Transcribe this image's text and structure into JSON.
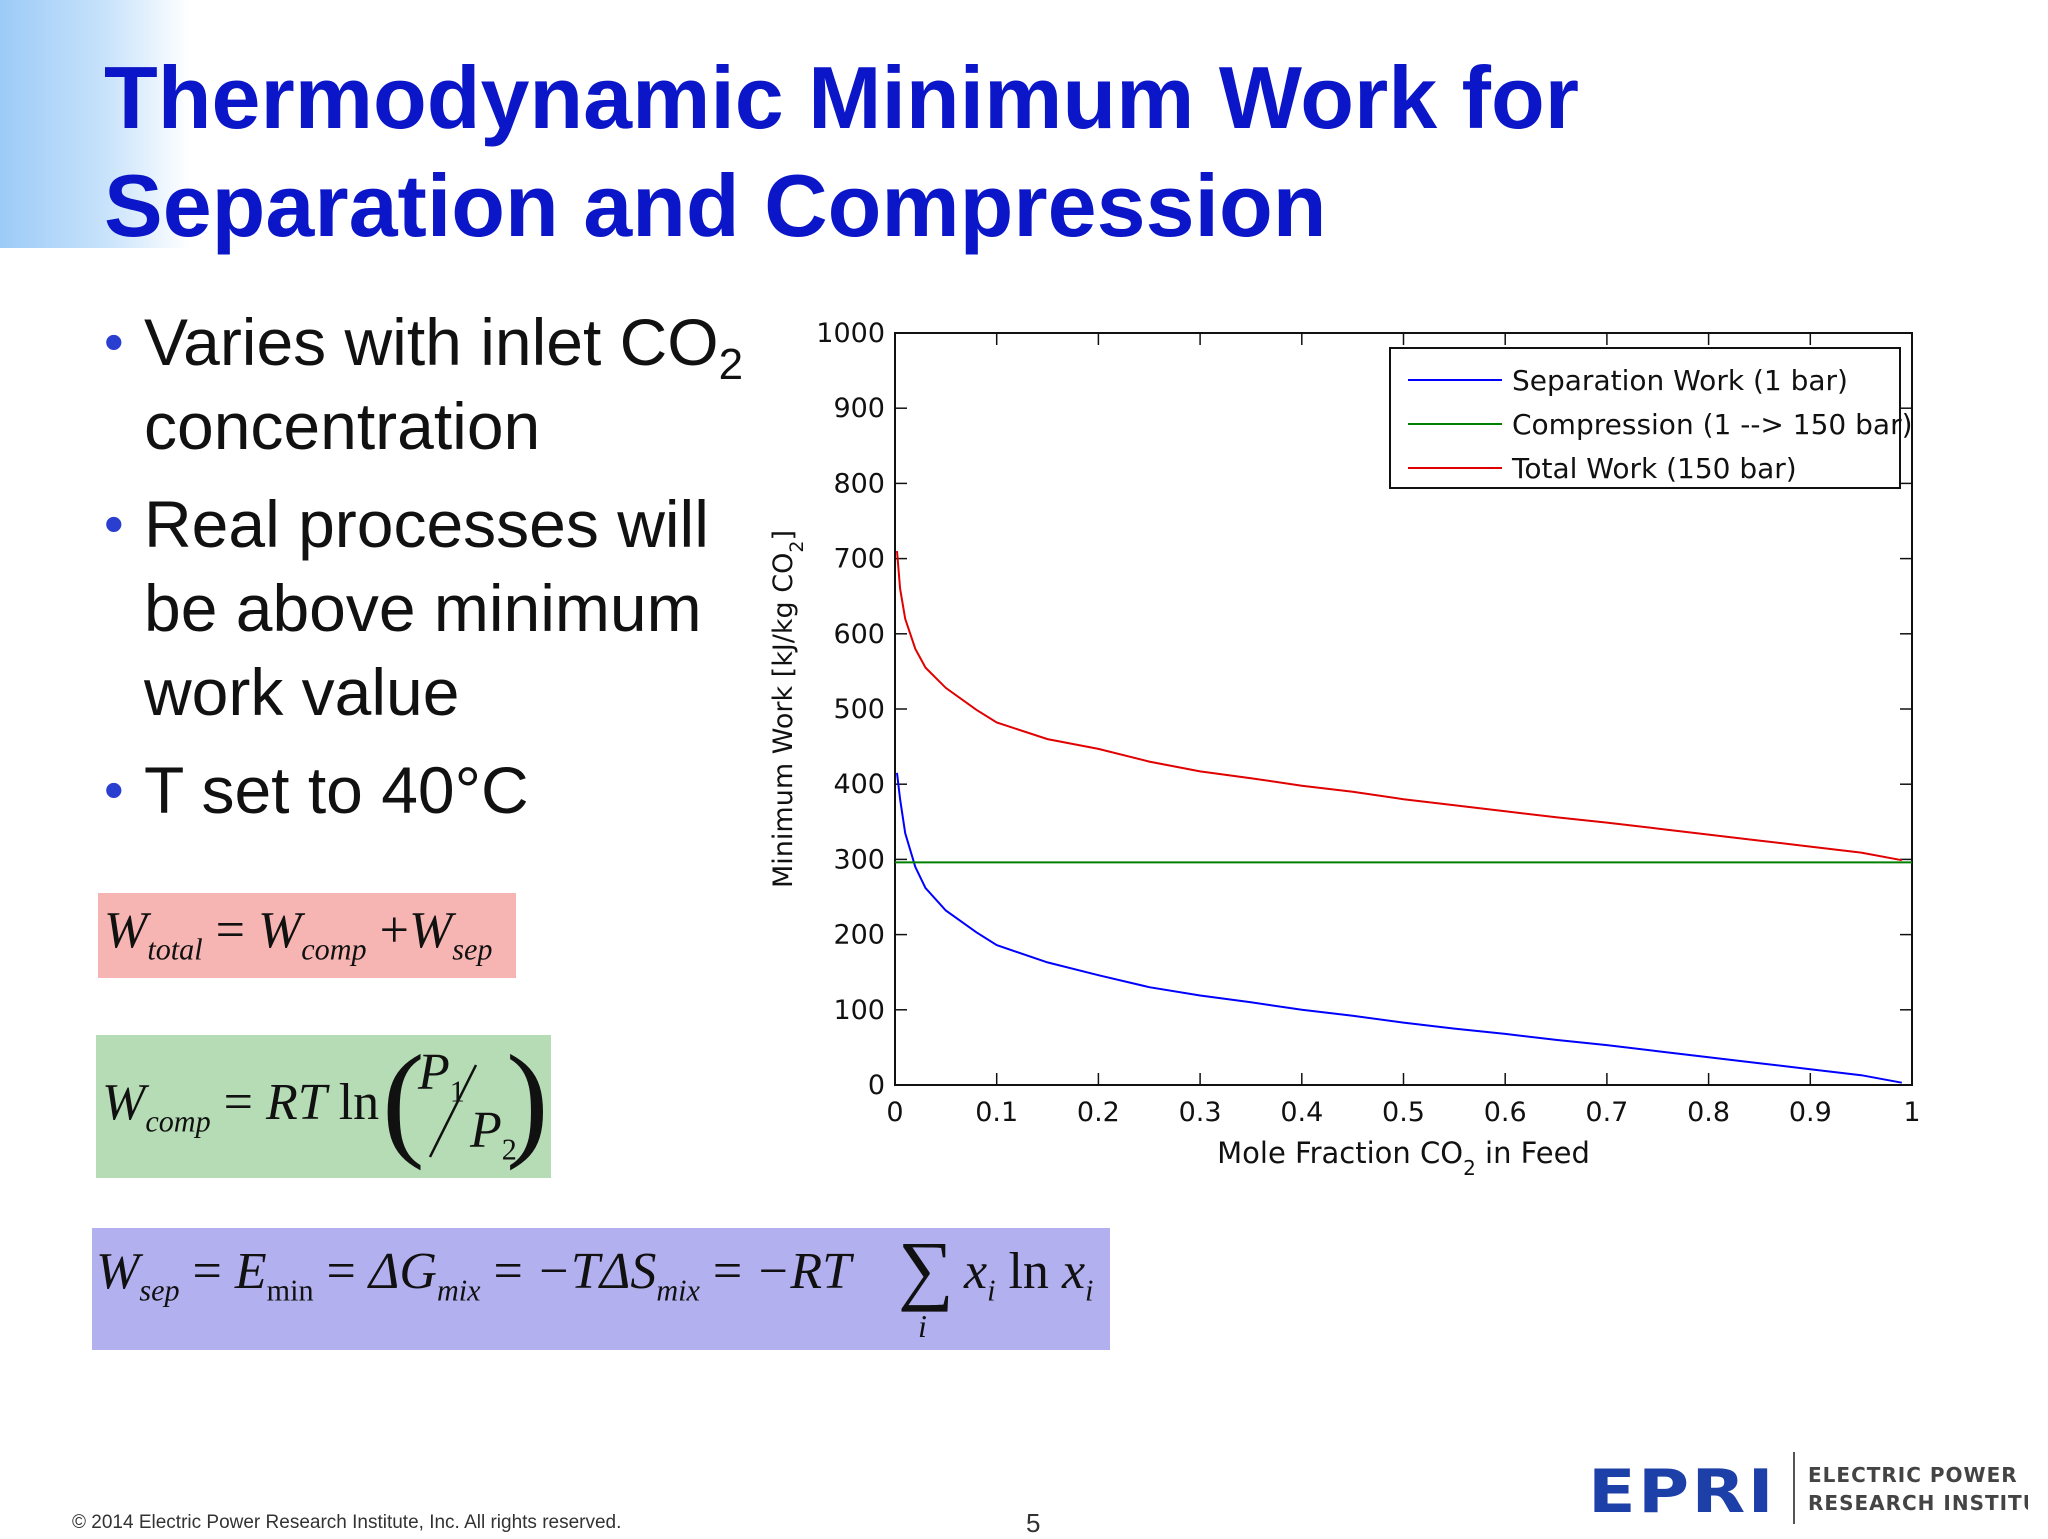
{
  "slide": {
    "title_line1": "Thermodynamic Minimum Work for",
    "title_line2": "Separation and Compression",
    "bullets": [
      {
        "text": "Varies with inlet CO",
        "sub": "2",
        "text_after": " concentration"
      },
      {
        "text": "Real processes will be above minimum work value"
      },
      {
        "text": "T set to 40°C"
      }
    ],
    "footer": "© 2014 Electric Power Research Institute, Inc. All rights reserved.",
    "page_number": "5",
    "logo": {
      "wordmark": "EPRI",
      "line1": "ELECTRIC POWER",
      "line2": "RESEARCH INSTITUTE",
      "color": "#1d3fa8"
    }
  },
  "equations": {
    "total": {
      "lhs": "W",
      "lhs_sub": "total",
      "t1": "W",
      "t1_sub": "comp",
      "t2": "W",
      "t2_sub": "sep",
      "color": "#f6b5b2"
    },
    "comp": {
      "lhs": "W",
      "lhs_sub": "comp",
      "rt": "RT",
      "ln": "ln",
      "num": "P",
      "num_sub": "1",
      "den": "P",
      "den_sub": "2",
      "color": "#b6dcb6"
    },
    "sep": {
      "lhs": "W",
      "lhs_sub": "sep",
      "e": "E",
      "e_sub": "min",
      "g": "ΔG",
      "g_sub": "mix",
      "s": "−TΔS",
      "s_sub": "mix",
      "rt": "−RT",
      "sum_index": "i",
      "x": "x",
      "x_sub": "i",
      "ln": "ln",
      "color": "#b3b0f0"
    }
  },
  "chart_data": {
    "type": "line",
    "xlabel": "Mole Fraction CO",
    "xlabel_sub": "2",
    "xlabel_after": " in Feed",
    "ylabel": "Minimum Work [kJ/kg CO",
    "ylabel_sub": "2",
    "ylabel_after": "]",
    "xlim": [
      0,
      1
    ],
    "ylim": [
      0,
      1000
    ],
    "xticks": [
      0,
      0.1,
      0.2,
      0.3,
      0.4,
      0.5,
      0.6,
      0.7,
      0.8,
      0.9,
      1
    ],
    "xtick_labels": [
      "0",
      "0.1",
      "0.2",
      "0.3",
      "0.4",
      "0.5",
      "0.6",
      "0.7",
      "0.8",
      "0.9",
      "1"
    ],
    "yticks": [
      0,
      100,
      200,
      300,
      400,
      500,
      600,
      700,
      800,
      900,
      1000
    ],
    "ytick_labels": [
      "0",
      "100",
      "200",
      "300",
      "400",
      "500",
      "600",
      "700",
      "800",
      "900",
      "1000"
    ],
    "grid": false,
    "legend_position": "top-right",
    "series": [
      {
        "name": "Separation Work (1 bar)",
        "color": "#0000ff",
        "x": [
          0.002,
          0.005,
          0.01,
          0.02,
          0.03,
          0.05,
          0.08,
          0.1,
          0.15,
          0.2,
          0.25,
          0.3,
          0.35,
          0.4,
          0.45,
          0.5,
          0.55,
          0.6,
          0.65,
          0.7,
          0.75,
          0.8,
          0.85,
          0.9,
          0.95,
          0.99
        ],
        "y": [
          415,
          380,
          335,
          290,
          262,
          232,
          203,
          186,
          163,
          146,
          130,
          119,
          110,
          100,
          92,
          83,
          75,
          68,
          60,
          53,
          45,
          37,
          29,
          21,
          13,
          3
        ]
      },
      {
        "name": "Compression (1 --> 150 bar)",
        "color": "#007f00",
        "x": [
          0,
          1
        ],
        "y": [
          296,
          296
        ]
      },
      {
        "name": "Total Work (150 bar)",
        "color": "#e00000",
        "x": [
          0.002,
          0.005,
          0.01,
          0.02,
          0.03,
          0.05,
          0.08,
          0.1,
          0.15,
          0.2,
          0.25,
          0.3,
          0.35,
          0.4,
          0.45,
          0.5,
          0.55,
          0.6,
          0.65,
          0.7,
          0.75,
          0.8,
          0.85,
          0.9,
          0.95,
          0.99
        ],
        "y": [
          710,
          660,
          620,
          580,
          555,
          528,
          499,
          482,
          460,
          447,
          430,
          417,
          408,
          398,
          390,
          380,
          372,
          364,
          356,
          349,
          341,
          333,
          325,
          317,
          309,
          299
        ]
      }
    ]
  }
}
